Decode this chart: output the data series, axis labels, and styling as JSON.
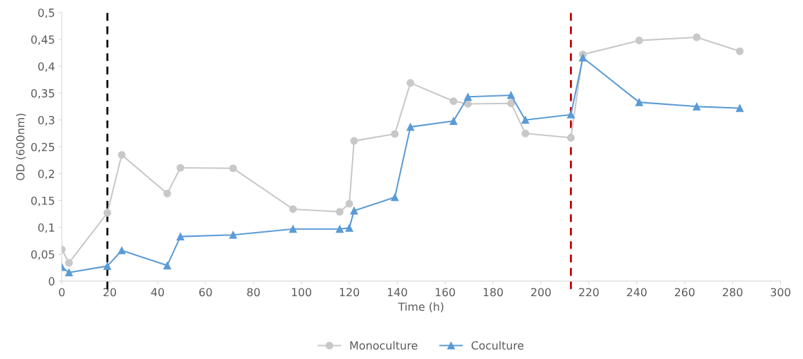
{
  "chart_data": {
    "type": "line",
    "xlabel": "Time (h)",
    "ylabel": "OD (600nm)",
    "x": [
      0,
      3,
      19,
      25,
      44,
      49.5,
      71.5,
      96.5,
      116,
      120,
      122,
      139,
      145.5,
      163.5,
      169.5,
      187.5,
      193.5,
      212.5,
      217.5,
      241,
      265,
      283
    ],
    "series": [
      {
        "name": "Monoculture",
        "color": "#c8c8c8",
        "marker": "circle",
        "values": [
          0.059,
          0.034,
          0.127,
          0.235,
          0.163,
          0.211,
          0.21,
          0.134,
          0.129,
          0.144,
          0.261,
          0.274,
          0.369,
          0.335,
          0.33,
          0.331,
          0.275,
          0.267,
          0.422,
          0.448,
          0.454,
          0.428
        ]
      },
      {
        "name": "Coculture",
        "color": "#5b9bd5",
        "marker": "triangle",
        "values": [
          0.026,
          0.016,
          0.028,
          0.057,
          0.029,
          0.083,
          0.086,
          0.097,
          0.097,
          0.099,
          0.131,
          0.156,
          0.287,
          0.298,
          0.343,
          0.346,
          0.3,
          0.31,
          0.416,
          0.333,
          0.325,
          0.322
        ]
      }
    ],
    "xlim": [
      0,
      300
    ],
    "xticks": [
      0,
      20,
      40,
      60,
      80,
      100,
      120,
      140,
      160,
      180,
      200,
      220,
      240,
      260,
      280,
      300
    ],
    "ylim": [
      0,
      0.5
    ],
    "yticks": [
      0,
      {
        "value": 0.05,
        "label": "0,05"
      },
      {
        "value": 0.1,
        "label": "0,1"
      },
      {
        "value": 0.15,
        "label": "0,15"
      },
      {
        "value": 0.2,
        "label": "0,2"
      },
      {
        "value": 0.25,
        "label": "0,25"
      },
      {
        "value": 0.3,
        "label": "0,3"
      },
      {
        "value": 0.35,
        "label": "0,35"
      },
      {
        "value": 0.4,
        "label": "0,4"
      },
      {
        "value": 0.45,
        "label": "0,45"
      },
      {
        "value": 0.5,
        "label": "0,5"
      }
    ],
    "ref_lines": [
      {
        "axis": "x",
        "value": 19,
        "color": "#000000",
        "line_style": "dashed"
      },
      {
        "axis": "x",
        "value": 212.5,
        "color": "#c00000",
        "line_style": "dashed"
      }
    ],
    "grid": false,
    "legend": "bottom"
  }
}
